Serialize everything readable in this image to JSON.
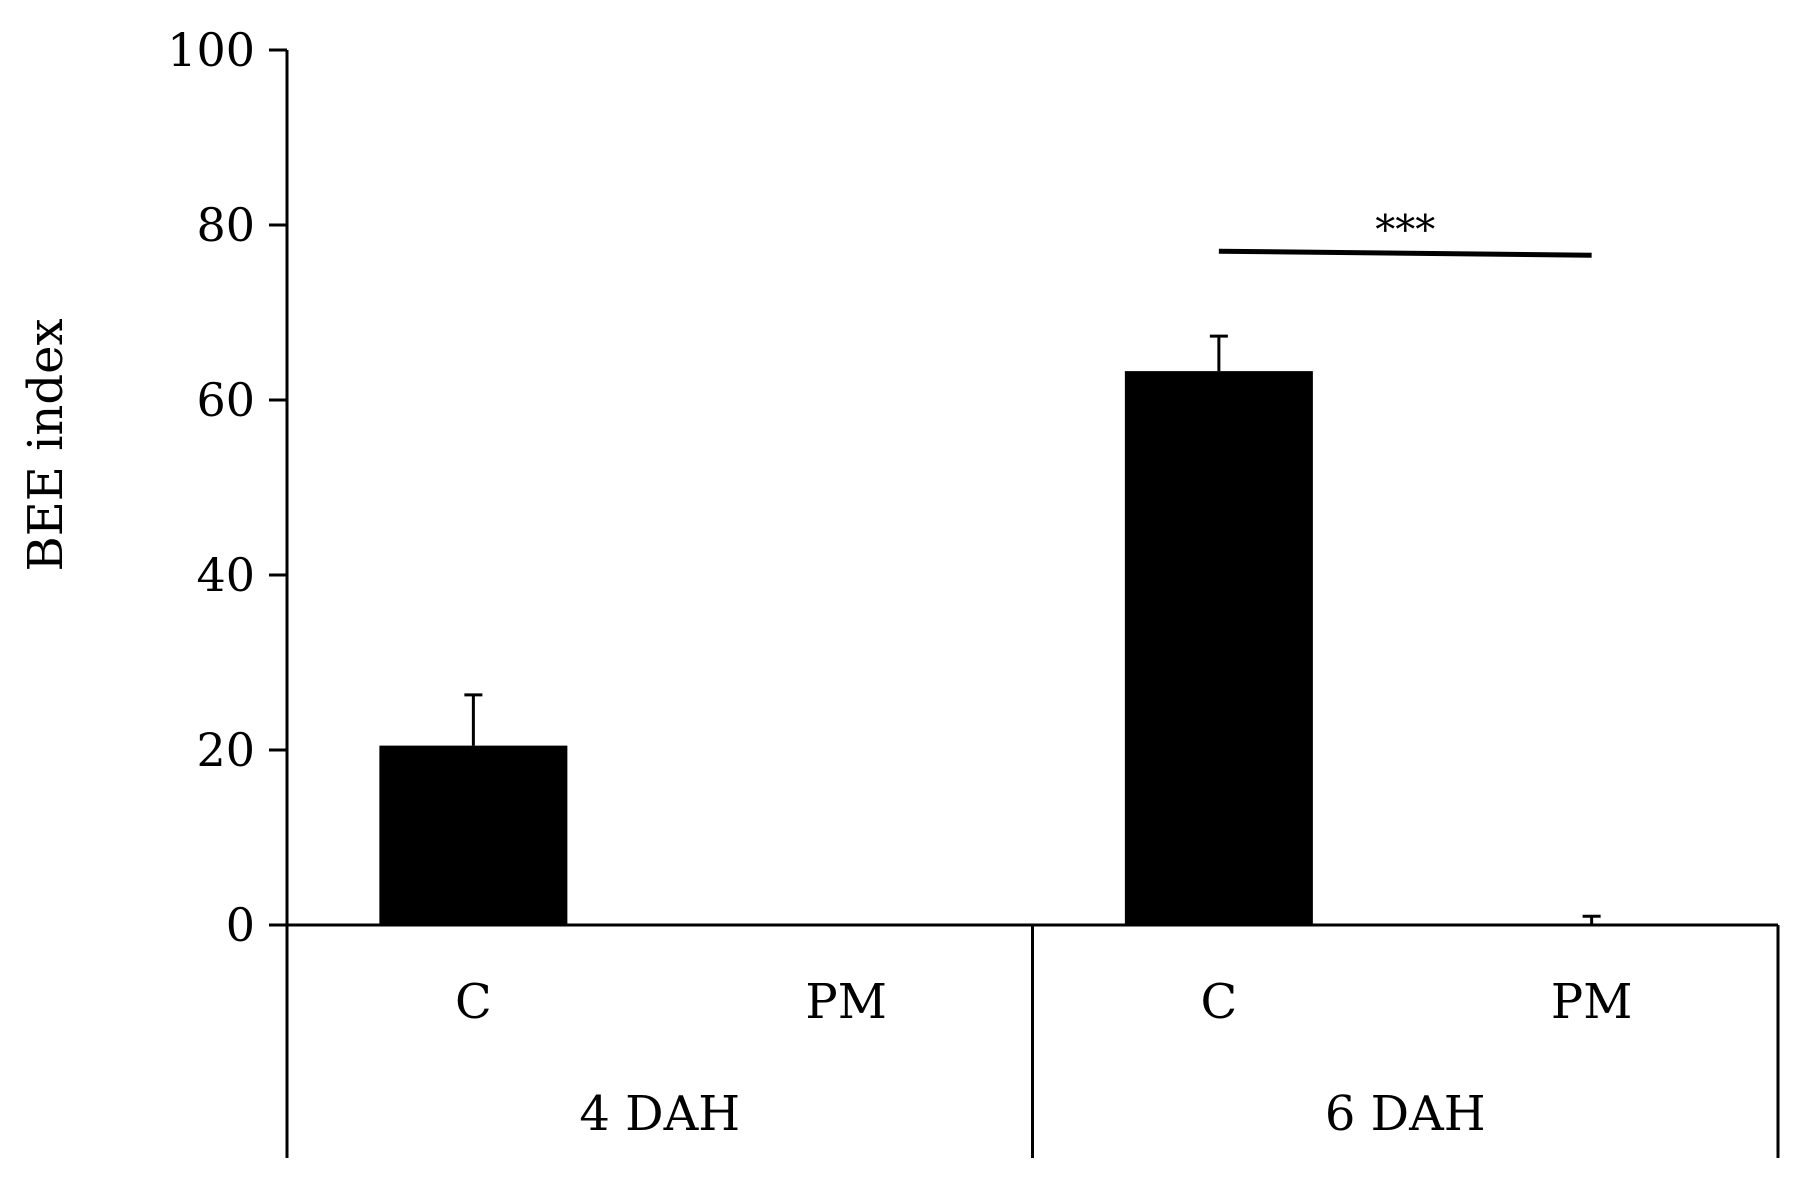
{
  "chart_data": {
    "type": "bar",
    "title": "",
    "ylabel": "BEE index",
    "xlabel": "",
    "ylim": [
      0,
      100
    ],
    "yticks": [
      0,
      20,
      40,
      60,
      80,
      100
    ],
    "grid": false,
    "bar_color": "#000000",
    "groups": [
      {
        "label": "4 DAH",
        "bars": [
          {
            "category": "C",
            "value": 20.5,
            "error": 5.8
          },
          {
            "category": "PM",
            "value": 0,
            "error": 0
          }
        ]
      },
      {
        "label": "6 DAH",
        "bars": [
          {
            "category": "C",
            "value": 63.3,
            "error": 4.0
          },
          {
            "category": "PM",
            "value": 0,
            "error": 1.0
          }
        ]
      }
    ],
    "annotations": [
      {
        "text": "***",
        "group": 1,
        "from_bar": 0,
        "to_bar": 1,
        "y": 77
      }
    ]
  }
}
